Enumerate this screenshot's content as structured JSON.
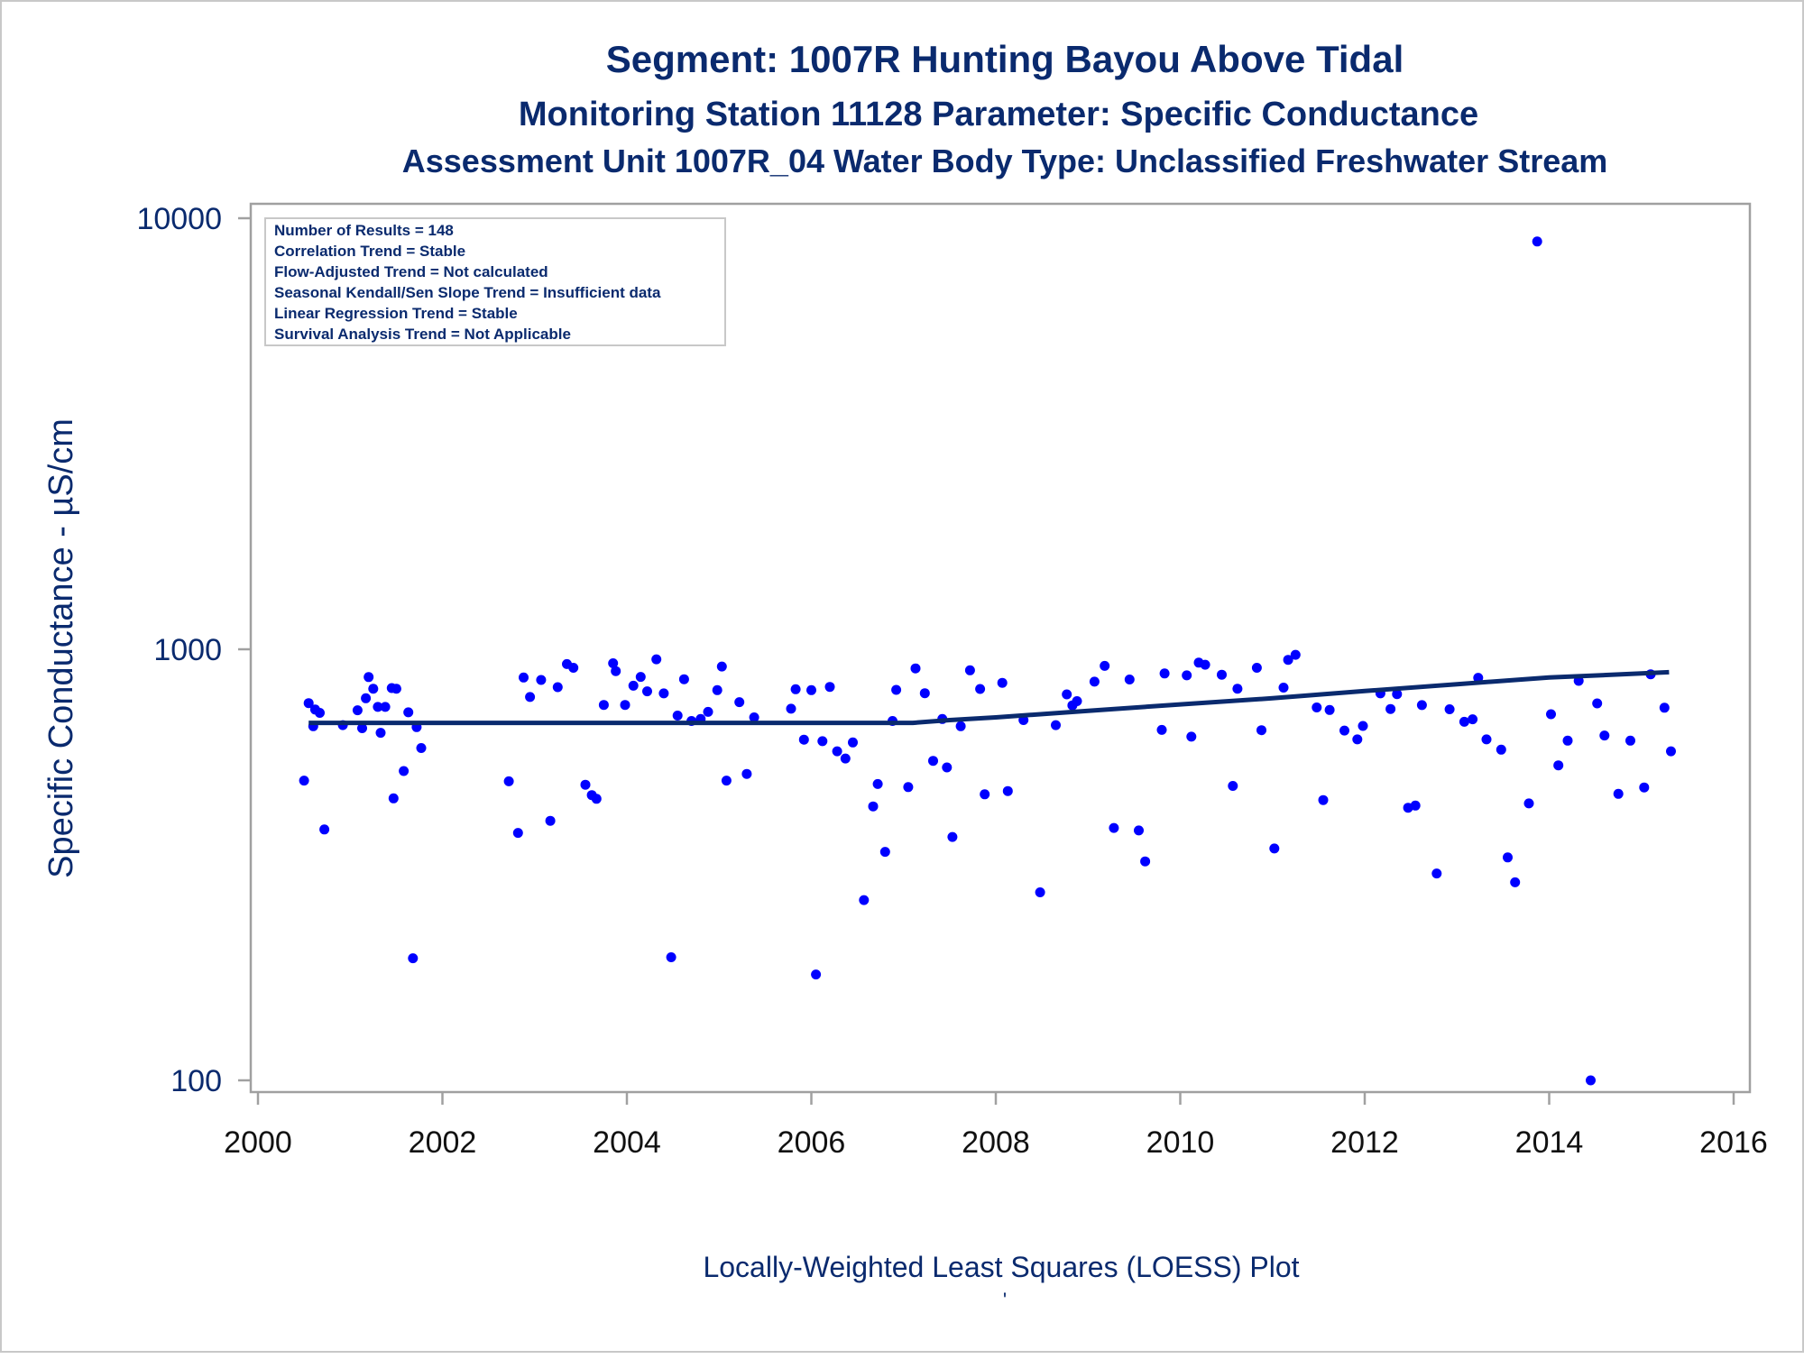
{
  "chart_data": {
    "type": "scatter",
    "title": "Segment: 1007R  Hunting Bayou Above Tidal",
    "subtitle": "Monitoring Station 11128 Parameter: Specific Conductance",
    "subtitle2": "Assessment Unit 1007R_04   Water Body Type: Unclassified Freshwater Stream",
    "ylabel": "Specific Conductance -  µS/cm",
    "xlabel": "",
    "footnote": "Locally-Weighted Least Squares (LOESS) Plot",
    "footnote_mark": "'",
    "yscale": "log",
    "ylim": [
      100,
      10000
    ],
    "xlim": [
      2000,
      2016
    ],
    "yticks": [
      "100",
      "1000",
      "10000"
    ],
    "xticks": [
      "2000",
      "2002",
      "2004",
      "2006",
      "2008",
      "2010",
      "2012",
      "2014",
      "2016"
    ],
    "grid": false,
    "stats_box": [
      "Number of Results = 148",
      "Correlation Trend = Stable",
      "Flow-Adjusted Trend = Not calculated",
      "Seasonal Kendall/Sen Slope Trend = Insufficient data",
      "Linear Regression Trend = Stable",
      "Survival Analysis Trend = Not Applicable"
    ],
    "colors": {
      "points": "#0000ff",
      "loess": "#0a2a6e",
      "text": "#0a2a6e",
      "frame": "#a0a0a0"
    },
    "series": [
      {
        "type": "scatter",
        "points": [
          [
            2000.5,
            496
          ],
          [
            2000.55,
            750
          ],
          [
            2000.6,
            663
          ],
          [
            2000.62,
            725
          ],
          [
            2000.67,
            712
          ],
          [
            2000.72,
            382
          ],
          [
            2000.92,
            667
          ],
          [
            2001.08,
            722
          ],
          [
            2001.13,
            656
          ],
          [
            2001.17,
            770
          ],
          [
            2001.2,
            862
          ],
          [
            2001.25,
            810
          ],
          [
            2001.3,
            735
          ],
          [
            2001.33,
            640
          ],
          [
            2001.38,
            735
          ],
          [
            2001.45,
            813
          ],
          [
            2001.47,
            451
          ],
          [
            2001.5,
            810
          ],
          [
            2001.58,
            522
          ],
          [
            2001.63,
            714
          ],
          [
            2001.68,
            192
          ],
          [
            2001.72,
            660
          ],
          [
            2001.77,
            590
          ],
          [
            2002.72,
            494
          ],
          [
            2002.82,
            375
          ],
          [
            2002.88,
            860
          ],
          [
            2002.95,
            775
          ],
          [
            2003.07,
            849
          ],
          [
            2003.17,
            400
          ],
          [
            2003.25,
            817
          ],
          [
            2003.35,
            924
          ],
          [
            2003.42,
            906
          ],
          [
            2003.55,
            485
          ],
          [
            2003.62,
            459
          ],
          [
            2003.67,
            450
          ],
          [
            2003.75,
            743
          ],
          [
            2003.85,
            928
          ],
          [
            2003.88,
            890
          ],
          [
            2003.98,
            743
          ],
          [
            2004.07,
            823
          ],
          [
            2004.15,
            863
          ],
          [
            2004.22,
            799
          ],
          [
            2004.32,
            948
          ],
          [
            2004.4,
            790
          ],
          [
            2004.48,
            193
          ],
          [
            2004.55,
            702
          ],
          [
            2004.62,
            852
          ],
          [
            2004.7,
            682
          ],
          [
            2004.8,
            689
          ],
          [
            2004.88,
            716
          ],
          [
            2004.98,
            804
          ],
          [
            2005.03,
            912
          ],
          [
            2005.08,
            496
          ],
          [
            2005.22,
            754
          ],
          [
            2005.3,
            514
          ],
          [
            2005.38,
            695
          ],
          [
            2005.78,
            728
          ],
          [
            2005.83,
            808
          ],
          [
            2005.92,
            617
          ],
          [
            2006.0,
            804
          ],
          [
            2006.05,
            176
          ],
          [
            2006.12,
            612
          ],
          [
            2006.2,
            818
          ],
          [
            2006.28,
            580
          ],
          [
            2006.37,
            558
          ],
          [
            2006.45,
            608
          ],
          [
            2006.57,
            262
          ],
          [
            2006.67,
            432
          ],
          [
            2006.72,
            487
          ],
          [
            2006.8,
            339
          ],
          [
            2006.88,
            682
          ],
          [
            2006.92,
            805
          ],
          [
            2007.05,
            479
          ],
          [
            2007.13,
            903
          ],
          [
            2007.23,
            791
          ],
          [
            2007.32,
            551
          ],
          [
            2007.42,
            689
          ],
          [
            2007.47,
            532
          ],
          [
            2007.53,
            367
          ],
          [
            2007.62,
            663
          ],
          [
            2007.72,
            894
          ],
          [
            2007.83,
            809
          ],
          [
            2007.88,
            461
          ],
          [
            2008.07,
            836
          ],
          [
            2008.13,
            469
          ],
          [
            2008.3,
            685
          ],
          [
            2008.48,
            273
          ],
          [
            2008.65,
            667
          ],
          [
            2008.77,
            786
          ],
          [
            2008.83,
            741
          ],
          [
            2008.88,
            758
          ],
          [
            2009.07,
            841
          ],
          [
            2009.18,
            915
          ],
          [
            2009.28,
            385
          ],
          [
            2009.45,
            851
          ],
          [
            2009.55,
            380
          ],
          [
            2009.62,
            322
          ],
          [
            2009.83,
            879
          ],
          [
            2009.8,
            650
          ],
          [
            2010.07,
            870
          ],
          [
            2010.12,
            627
          ],
          [
            2010.2,
            931
          ],
          [
            2010.27,
            921
          ],
          [
            2010.45,
            873
          ],
          [
            2010.57,
            482
          ],
          [
            2010.62,
            810
          ],
          [
            2010.83,
            906
          ],
          [
            2010.88,
            649
          ],
          [
            2011.02,
            345
          ],
          [
            2011.12,
            815
          ],
          [
            2011.17,
            945
          ],
          [
            2011.25,
            971
          ],
          [
            2011.48,
            733
          ],
          [
            2011.55,
            447
          ],
          [
            2011.62,
            723
          ],
          [
            2011.78,
            648
          ],
          [
            2011.92,
            618
          ],
          [
            2011.98,
            664
          ],
          [
            2012.17,
            790
          ],
          [
            2012.28,
            727
          ],
          [
            2012.35,
            787
          ],
          [
            2012.47,
            429
          ],
          [
            2012.55,
            434
          ],
          [
            2012.62,
            742
          ],
          [
            2012.78,
            302
          ],
          [
            2012.92,
            726
          ],
          [
            2013.08,
            679
          ],
          [
            2013.17,
            688
          ],
          [
            2013.23,
            859
          ],
          [
            2013.32,
            618
          ],
          [
            2013.48,
            585
          ],
          [
            2013.55,
            329
          ],
          [
            2013.63,
            288
          ],
          [
            2013.78,
            439
          ],
          [
            2013.87,
            8833
          ],
          [
            2014.02,
            707
          ],
          [
            2014.1,
            538
          ],
          [
            2014.2,
            614
          ],
          [
            2014.32,
            845
          ],
          [
            2014.45,
            100
          ],
          [
            2014.52,
            749
          ],
          [
            2014.6,
            631
          ],
          [
            2014.75,
            462
          ],
          [
            2014.88,
            614
          ],
          [
            2015.03,
            478
          ],
          [
            2015.1,
            875
          ],
          [
            2015.25,
            732
          ],
          [
            2015.32,
            580
          ]
        ]
      },
      {
        "type": "line",
        "points": [
          [
            2000.55,
            675
          ],
          [
            2007.1,
            675
          ],
          [
            2007.5,
            685
          ],
          [
            2008.0,
            695
          ],
          [
            2009.0,
            720
          ],
          [
            2010.0,
            745
          ],
          [
            2011.0,
            770
          ],
          [
            2012.0,
            800
          ],
          [
            2013.0,
            830
          ],
          [
            2014.0,
            860
          ],
          [
            2015.3,
            885
          ]
        ]
      }
    ]
  }
}
